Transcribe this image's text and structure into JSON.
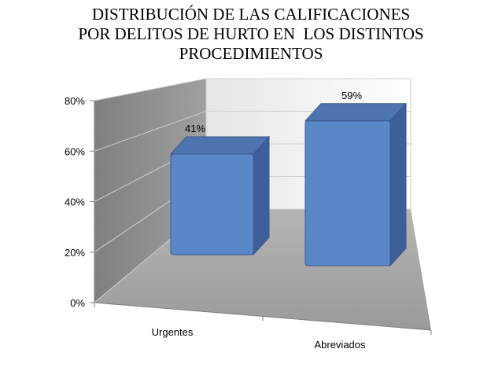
{
  "chart_data": {
    "type": "bar",
    "title_lines": [
      "DISTRIBUCIÓN DE LAS CALIFICACIONES",
      "POR DELITOS DE HURTO EN  LOS DISTINTOS",
      "PROCEDIMIENTOS"
    ],
    "categories": [
      "Urgentes",
      "Abreviados"
    ],
    "values": [
      41,
      59
    ],
    "data_labels": [
      "41%",
      "59%"
    ],
    "y_ticks": [
      "0%",
      "20%",
      "40%",
      "60%",
      "80%"
    ],
    "ylim": [
      0,
      80
    ],
    "grid": true,
    "legend": "none",
    "colors": {
      "bar_front": "#5B87C9",
      "bar_top": "#4E74B0",
      "bar_side": "#3E5F97",
      "back_wall": "#F2F2F2",
      "side_wall": "#8C8C8C",
      "floor": "#A6A6A6"
    }
  }
}
